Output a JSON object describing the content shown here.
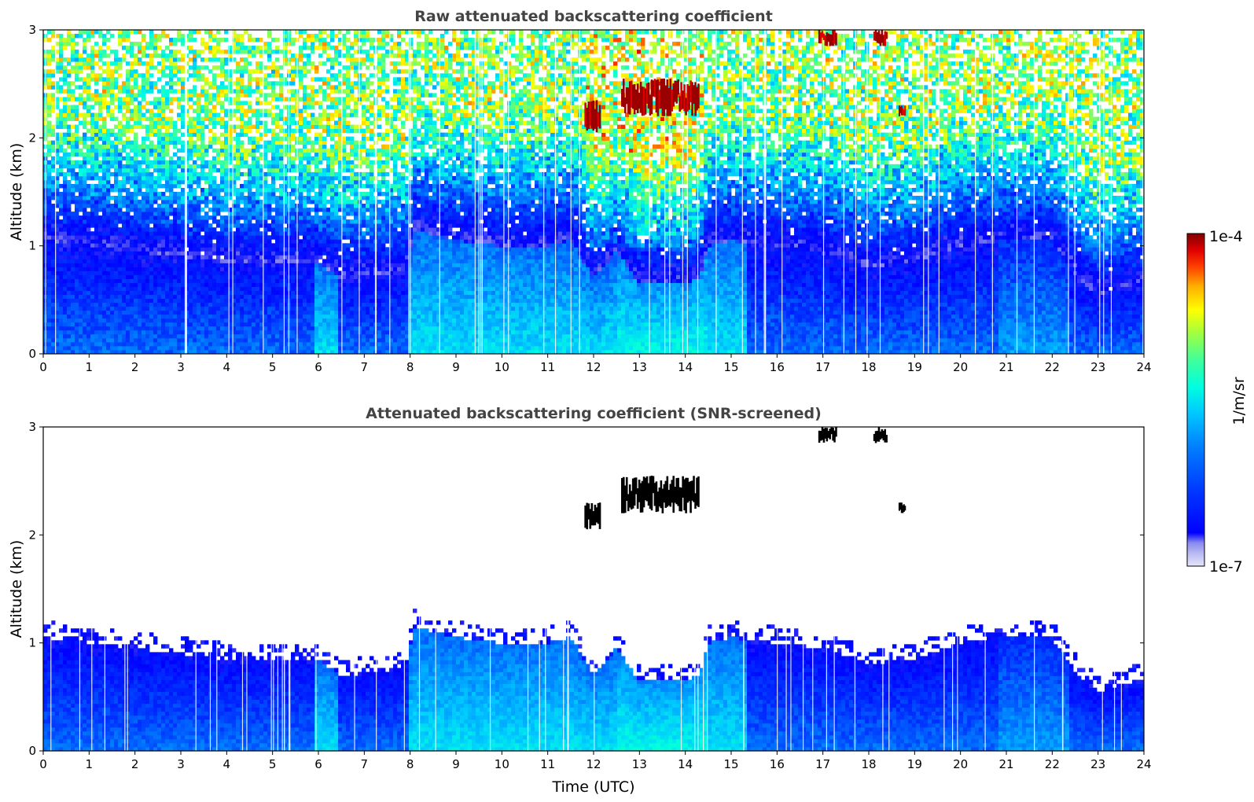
{
  "chart_data": [
    {
      "type": "heatmap",
      "title": "Raw attenuated backscattering coefficient",
      "xlabel": "",
      "ylabel": "Altitude (km)",
      "xlim": [
        0,
        24
      ],
      "ylim": [
        0,
        3
      ],
      "xticks": [
        "0",
        "1",
        "2",
        "3",
        "4",
        "5",
        "6",
        "7",
        "8",
        "9",
        "10",
        "11",
        "12",
        "13",
        "14",
        "15",
        "16",
        "17",
        "18",
        "19",
        "20",
        "21",
        "22",
        "23",
        "24"
      ],
      "yticks": [
        "0",
        "1",
        "2",
        "3"
      ],
      "cloud_features": [
        {
          "x": [
            11.8,
            12.15
          ],
          "altitude_km": [
            2.05,
            2.35
          ]
        },
        {
          "x": [
            12.6,
            14.3
          ],
          "altitude_km": [
            2.2,
            2.55
          ]
        },
        {
          "x": [
            16.9,
            17.3
          ],
          "altitude_km": [
            2.85,
            3.0
          ]
        },
        {
          "x": [
            18.1,
            18.4
          ],
          "altitude_km": [
            2.85,
            3.0
          ]
        },
        {
          "x": [
            18.65,
            18.8
          ],
          "altitude_km": [
            2.2,
            2.3
          ]
        }
      ]
    },
    {
      "type": "heatmap",
      "title": "Attenuated backscattering coefficient (SNR-screened)",
      "xlabel": "Time (UTC)",
      "ylabel": "Altitude (km)",
      "xlim": [
        0,
        24
      ],
      "ylim": [
        0,
        3
      ],
      "xticks": [
        "0",
        "1",
        "2",
        "3",
        "4",
        "5",
        "6",
        "7",
        "8",
        "9",
        "10",
        "11",
        "12",
        "13",
        "14",
        "15",
        "16",
        "17",
        "18",
        "19",
        "20",
        "21",
        "22",
        "23",
        "24"
      ],
      "yticks": [
        "0",
        "1",
        "2",
        "3"
      ],
      "boundary_layer_top_km": {
        "time": [
          0,
          1,
          2,
          3,
          4,
          5,
          6,
          6.5,
          7,
          7.5,
          7.9,
          8.1,
          9,
          10,
          11,
          11.5,
          12,
          12.5,
          13,
          13.5,
          14,
          14.3,
          14.5,
          15,
          16,
          17,
          18,
          19,
          20,
          21,
          22,
          22.4,
          22.7,
          23,
          23.5,
          23.85
        ],
        "altitude_km": [
          1.05,
          1.0,
          0.95,
          0.9,
          0.85,
          0.85,
          0.85,
          0.7,
          0.72,
          0.75,
          0.78,
          1.15,
          1.05,
          1.0,
          1.0,
          1.05,
          0.7,
          0.95,
          0.65,
          0.65,
          0.65,
          0.7,
          1.0,
          1.05,
          1.0,
          0.95,
          0.8,
          0.85,
          1.0,
          1.05,
          1.05,
          0.8,
          0.65,
          0.55,
          0.6,
          0.65
        ]
      },
      "cloud_features": [
        {
          "x": [
            11.8,
            12.15
          ],
          "altitude_km": [
            2.05,
            2.3
          ]
        },
        {
          "x": [
            12.6,
            14.3
          ],
          "altitude_km": [
            2.2,
            2.55
          ]
        },
        {
          "x": [
            16.9,
            17.3
          ],
          "altitude_km": [
            2.85,
            3.0
          ]
        },
        {
          "x": [
            18.1,
            18.4
          ],
          "altitude_km": [
            2.85,
            3.0
          ]
        },
        {
          "x": [
            18.65,
            18.8
          ],
          "altitude_km": [
            2.2,
            2.3
          ]
        }
      ]
    }
  ],
  "colorbar": {
    "max_label": "1e-4",
    "min_label": "1e-7",
    "label": "1/m/sr",
    "colors": [
      "#e6e6fa",
      "#b7b7f2",
      "#8a8af0",
      "#0000ff",
      "#0035ff",
      "#0080ff",
      "#00c8ff",
      "#00ffe0",
      "#40ff9a",
      "#a0ff40",
      "#ffff00",
      "#ffb000",
      "#ff4000",
      "#e00000",
      "#800000"
    ]
  }
}
